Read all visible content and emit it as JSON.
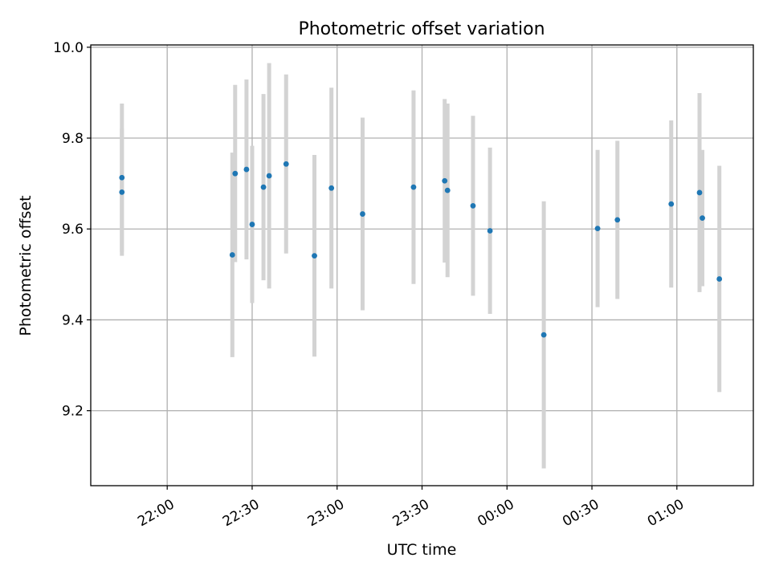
{
  "chart_data": {
    "type": "scatter",
    "title": "Photometric offset variation",
    "xlabel": "UTC time",
    "ylabel": "Photometric offset",
    "x_unit": "UTC clock time (HH:MM)",
    "xlim": [
      "21:33",
      "01:27"
    ],
    "ylim": [
      9.035,
      10.005
    ],
    "x_ticks": [
      "22:00",
      "22:30",
      "23:00",
      "23:30",
      "00:00",
      "00:30",
      "01:00"
    ],
    "y_ticks": [
      9.2,
      9.4,
      9.6,
      9.8,
      10.0
    ],
    "y_tick_labels": [
      "9.2",
      "9.4",
      "9.6",
      "9.8",
      "10.0"
    ],
    "grid": true,
    "legend": "none",
    "colors": {
      "points": "#1f77b4",
      "errorbars": "#d3d3d3",
      "grid": "#b0b0b0"
    },
    "series": [
      {
        "points": [
          {
            "x": "21:44",
            "y": 9.713,
            "ylow": 9.55,
            "yhigh": 9.876
          },
          {
            "x": "21:44",
            "y": 9.681,
            "ylow": 9.541,
            "yhigh": 9.821
          },
          {
            "x": "22:23",
            "y": 9.543,
            "ylow": 9.318,
            "yhigh": 9.768
          },
          {
            "x": "22:24",
            "y": 9.722,
            "ylow": 9.527,
            "yhigh": 9.917
          },
          {
            "x": "22:28",
            "y": 9.731,
            "ylow": 9.533,
            "yhigh": 9.929
          },
          {
            "x": "22:30",
            "y": 9.61,
            "ylow": 9.437,
            "yhigh": 9.783
          },
          {
            "x": "22:34",
            "y": 9.692,
            "ylow": 9.487,
            "yhigh": 9.897
          },
          {
            "x": "22:36",
            "y": 9.717,
            "ylow": 9.469,
            "yhigh": 9.965
          },
          {
            "x": "22:42",
            "y": 9.743,
            "ylow": 9.546,
            "yhigh": 9.94
          },
          {
            "x": "22:52",
            "y": 9.541,
            "ylow": 9.319,
            "yhigh": 9.763
          },
          {
            "x": "22:58",
            "y": 9.69,
            "ylow": 9.469,
            "yhigh": 9.911
          },
          {
            "x": "23:09",
            "y": 9.633,
            "ylow": 9.421,
            "yhigh": 9.845
          },
          {
            "x": "23:27",
            "y": 9.692,
            "ylow": 9.479,
            "yhigh": 9.905
          },
          {
            "x": "23:38",
            "y": 9.706,
            "ylow": 9.526,
            "yhigh": 9.886
          },
          {
            "x": "23:39",
            "y": 9.685,
            "ylow": 9.494,
            "yhigh": 9.876
          },
          {
            "x": "23:48",
            "y": 9.651,
            "ylow": 9.453,
            "yhigh": 9.849
          },
          {
            "x": "23:54",
            "y": 9.596,
            "ylow": 9.413,
            "yhigh": 9.779
          },
          {
            "x": "00:13",
            "y": 9.367,
            "ylow": 9.073,
            "yhigh": 9.661
          },
          {
            "x": "00:32",
            "y": 9.601,
            "ylow": 9.428,
            "yhigh": 9.774
          },
          {
            "x": "00:39",
            "y": 9.62,
            "ylow": 9.446,
            "yhigh": 9.794
          },
          {
            "x": "00:58",
            "y": 9.655,
            "ylow": 9.471,
            "yhigh": 9.839
          },
          {
            "x": "01:08",
            "y": 9.68,
            "ylow": 9.461,
            "yhigh": 9.899
          },
          {
            "x": "01:09",
            "y": 9.624,
            "ylow": 9.474,
            "yhigh": 9.774
          },
          {
            "x": "01:15",
            "y": 9.49,
            "ylow": 9.241,
            "yhigh": 9.739
          }
        ]
      }
    ]
  }
}
